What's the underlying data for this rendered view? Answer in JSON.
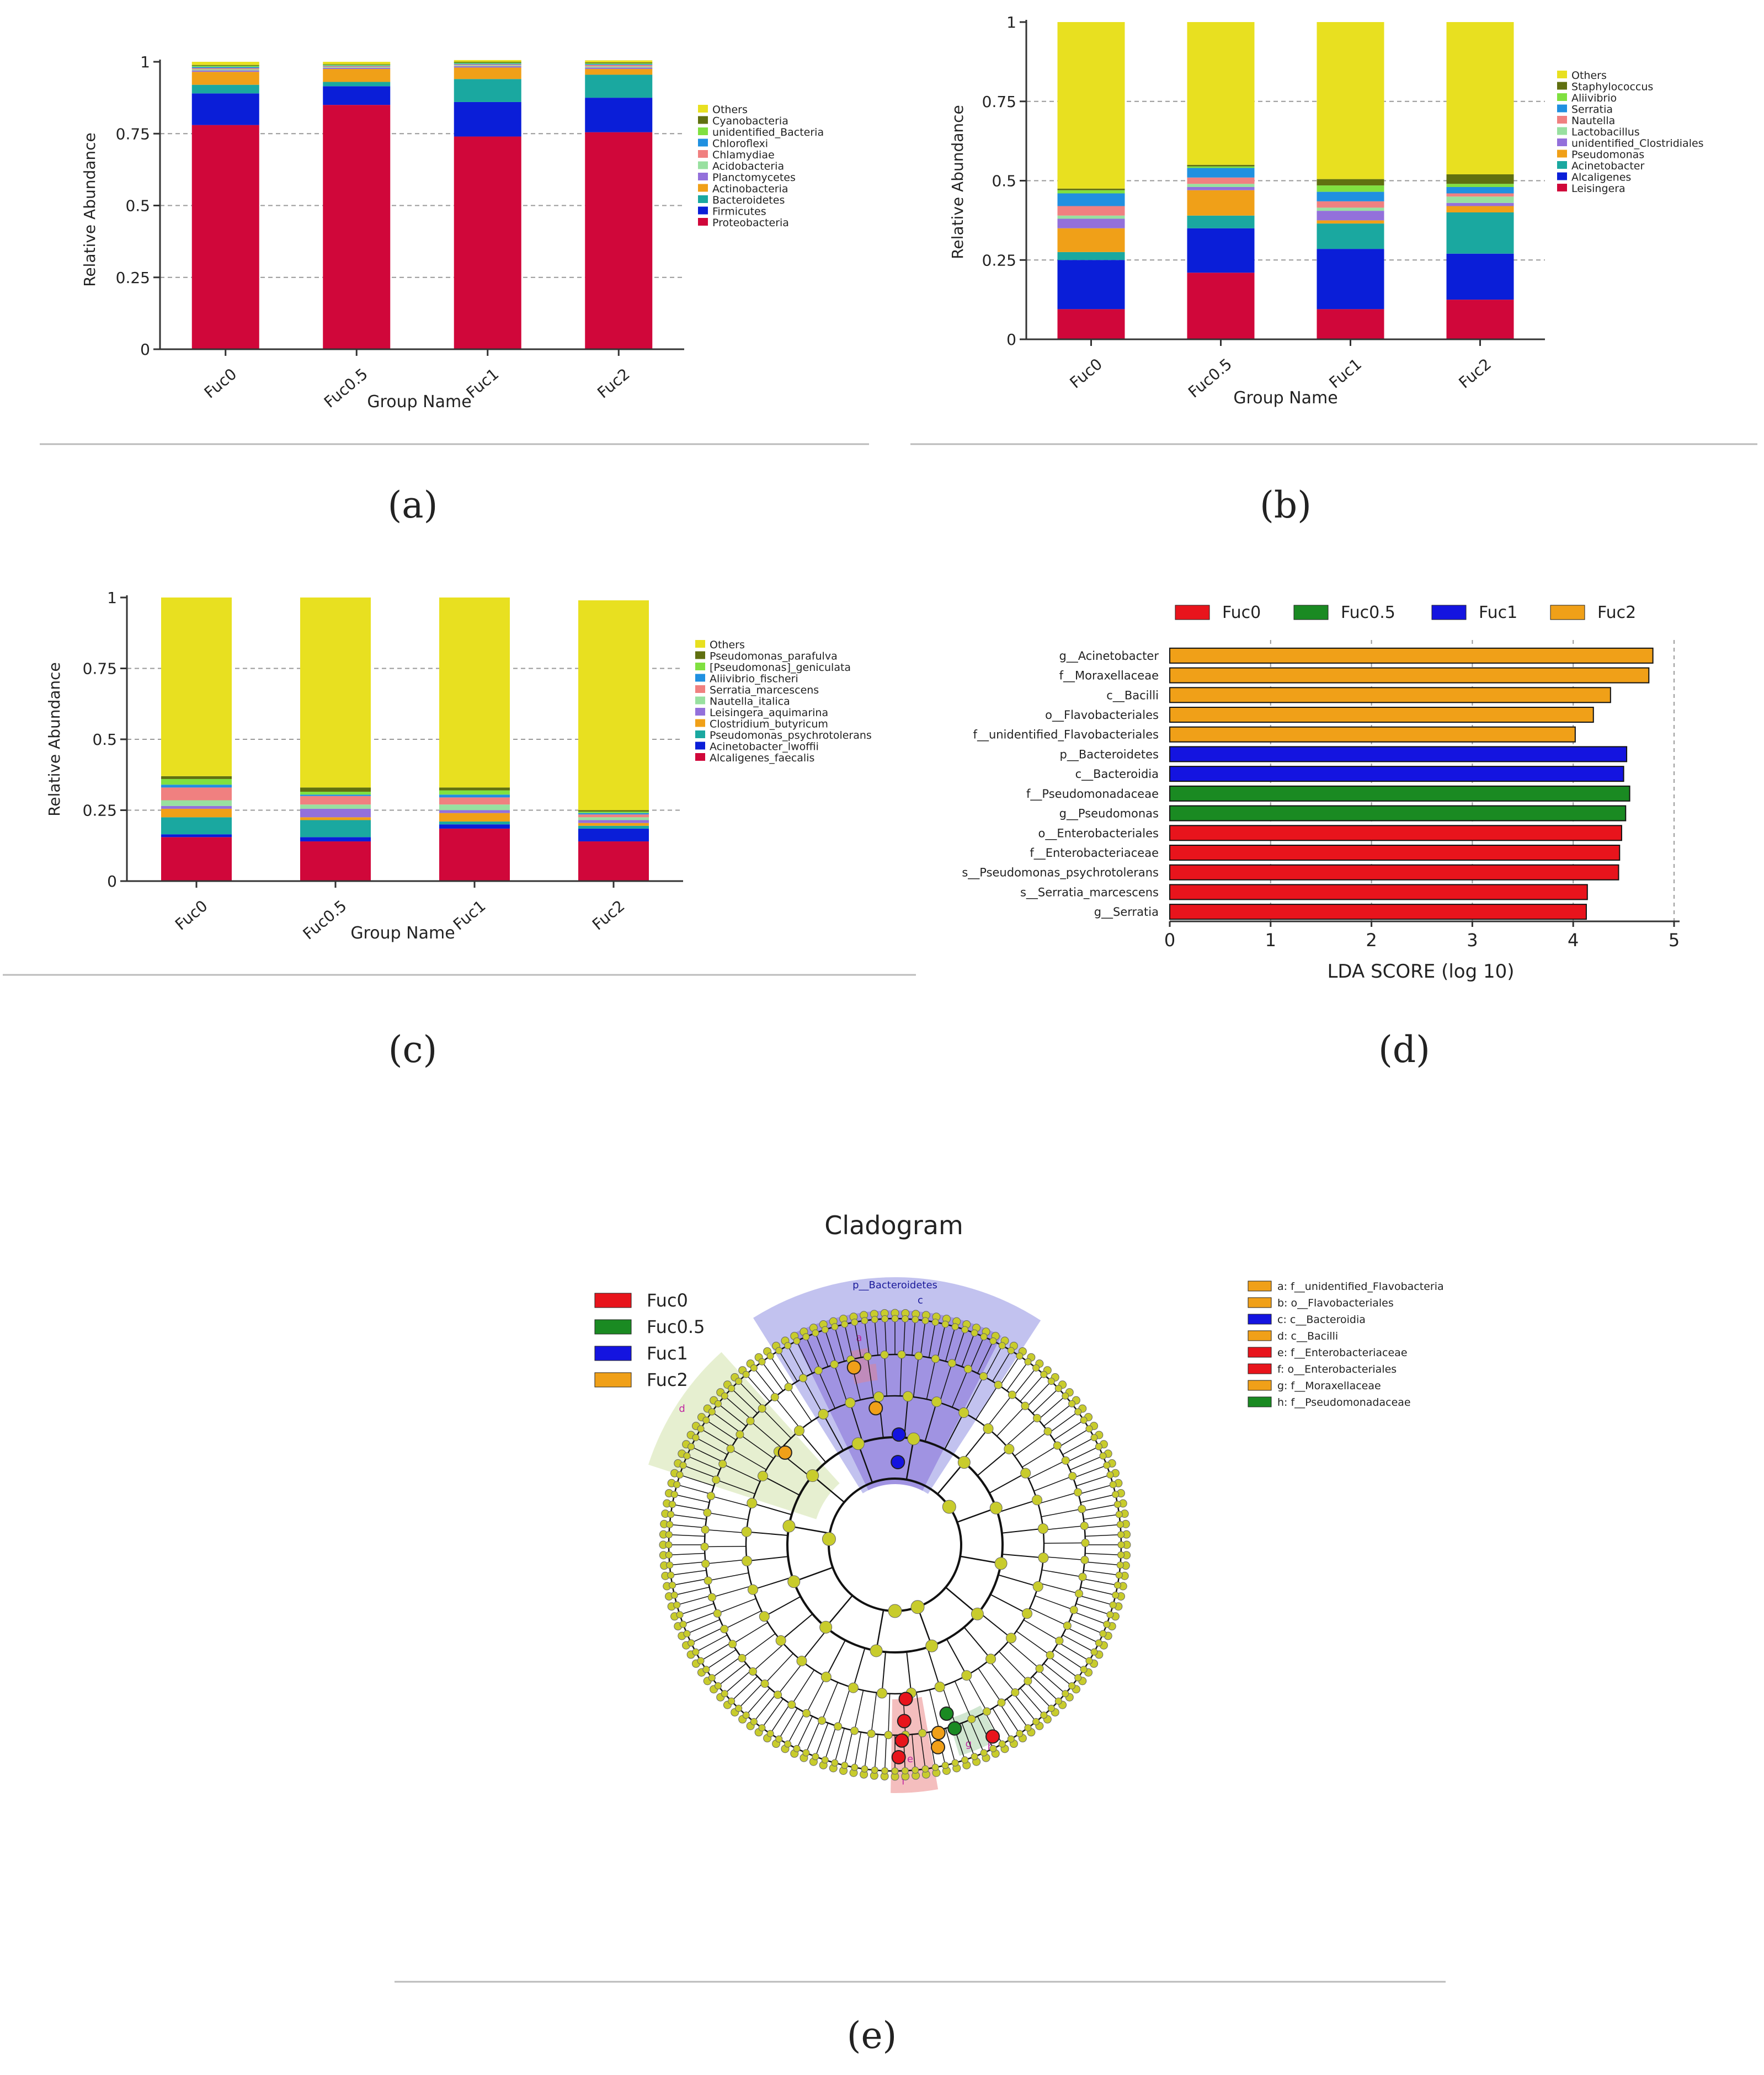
{
  "captions": {
    "a": "(a)",
    "b": "(b)",
    "c": "(c)",
    "d": "(d)",
    "e": "(e)"
  },
  "chart_data": [
    {
      "panel": "a",
      "type": "stacked-bar",
      "ylabel": "Relative Abundance",
      "xlabel": "Group Name",
      "categories": [
        "Fuc0",
        "Fuc0.5",
        "Fuc1",
        "Fuc2"
      ],
      "yticks": [
        "0",
        "0.25",
        "0.5",
        "0.75",
        "1"
      ],
      "ylim": [
        0,
        1
      ],
      "legend": [
        "Others",
        "Cyanobacteria",
        "unidentified_Bacteria",
        "Chloroflexi",
        "Chlamydiae",
        "Acidobacteria",
        "Planctomycetes",
        "Actinobacteria",
        "Bacteroidetes",
        "Firmicutes",
        "Proteobacteria"
      ],
      "series": [
        {
          "name": "Proteobacteria",
          "color": "#d0073a",
          "values": [
            0.78,
            0.85,
            0.74,
            0.755
          ]
        },
        {
          "name": "Firmicutes",
          "color": "#0a1ed8",
          "values": [
            0.11,
            0.065,
            0.12,
            0.12
          ]
        },
        {
          "name": "Bacteroidetes",
          "color": "#1aa8a0",
          "values": [
            0.03,
            0.015,
            0.08,
            0.08
          ]
        },
        {
          "name": "Actinobacteria",
          "color": "#f0a018",
          "values": [
            0.045,
            0.045,
            0.04,
            0.02
          ]
        },
        {
          "name": "Planctomycetes",
          "color": "#9370db",
          "values": [
            0.005,
            0.004,
            0.005,
            0.005
          ]
        },
        {
          "name": "Acidobacteria",
          "color": "#98e0a0",
          "values": [
            0.004,
            0.003,
            0.003,
            0.004
          ]
        },
        {
          "name": "Chlamydiae",
          "color": "#f08080",
          "values": [
            0.004,
            0.003,
            0.003,
            0.005
          ]
        },
        {
          "name": "Chloroflexi",
          "color": "#2090e0",
          "values": [
            0.004,
            0.002,
            0.003,
            0.003
          ]
        },
        {
          "name": "unidentified_Bacteria",
          "color": "#80e040",
          "values": [
            0.004,
            0.003,
            0.003,
            0.003
          ]
        },
        {
          "name": "Cyanobacteria",
          "color": "#607010",
          "values": [
            0.003,
            0.002,
            0.003,
            0.003
          ]
        },
        {
          "name": "Others",
          "color": "#e8e020",
          "values": [
            0.011,
            0.008,
            0.006,
            0.007
          ]
        }
      ]
    },
    {
      "panel": "b",
      "type": "stacked-bar",
      "ylabel": "Relative Abundance",
      "xlabel": "Group Name",
      "categories": [
        "Fuc0",
        "Fuc0.5",
        "Fuc1",
        "Fuc2"
      ],
      "yticks": [
        "0",
        "0.25",
        "0.5",
        "0.75",
        "1"
      ],
      "ylim": [
        0,
        1
      ],
      "legend": [
        "Others",
        "Staphylococcus",
        "Aliivibrio",
        "Serratia",
        "Nautella",
        "Lactobacillus",
        "unidentified_Clostridiales",
        "Pseudomonas",
        "Acinetobacter",
        "Alcaligenes",
        "Leisingera"
      ],
      "series": [
        {
          "name": "Leisingera",
          "color": "#d0073a",
          "values": [
            0.095,
            0.21,
            0.095,
            0.125
          ]
        },
        {
          "name": "Alcaligenes",
          "color": "#0a1ed8",
          "values": [
            0.155,
            0.14,
            0.19,
            0.145
          ]
        },
        {
          "name": "Acinetobacter",
          "color": "#1aa8a0",
          "values": [
            0.025,
            0.04,
            0.08,
            0.13
          ]
        },
        {
          "name": "Pseudomonas",
          "color": "#f0a018",
          "values": [
            0.075,
            0.08,
            0.01,
            0.02
          ]
        },
        {
          "name": "unidentified_Clostridiales",
          "color": "#9370db",
          "values": [
            0.03,
            0.01,
            0.03,
            0.01
          ]
        },
        {
          "name": "Lactobacillus",
          "color": "#98e0a0",
          "values": [
            0.01,
            0.01,
            0.01,
            0.02
          ]
        },
        {
          "name": "Nautella",
          "color": "#f08080",
          "values": [
            0.03,
            0.02,
            0.02,
            0.01
          ]
        },
        {
          "name": "Serratia",
          "color": "#2090e0",
          "values": [
            0.04,
            0.03,
            0.03,
            0.02
          ]
        },
        {
          "name": "Aliivibrio",
          "color": "#80e040",
          "values": [
            0.01,
            0.005,
            0.02,
            0.01
          ]
        },
        {
          "name": "Staphylococcus",
          "color": "#607010",
          "values": [
            0.005,
            0.005,
            0.02,
            0.03
          ]
        },
        {
          "name": "Others",
          "color": "#e8e020",
          "values": [
            0.525,
            0.45,
            0.495,
            0.48
          ]
        }
      ]
    },
    {
      "panel": "c",
      "type": "stacked-bar",
      "ylabel": "Relative Abundance",
      "xlabel": "Group Name",
      "categories": [
        "Fuc0",
        "Fuc0.5",
        "Fuc1",
        "Fuc2"
      ],
      "yticks": [
        "0",
        "0.25",
        "0.5",
        "0.75",
        "1"
      ],
      "ylim": [
        0,
        1
      ],
      "legend": [
        "Others",
        "Pseudomonas_parafulva",
        "[Pseudomonas]_geniculata",
        "Aliivibrio_fischeri",
        "Serratia_marcescens",
        "Nautella_italica",
        "Leisingera_aquimarina",
        "Clostridium_butyricum",
        "Pseudomonas_psychrotolerans",
        "Acinetobacter_lwoffii",
        "Alcaligenes_faecalis"
      ],
      "series": [
        {
          "name": "Alcaligenes_faecalis",
          "color": "#d0073a",
          "values": [
            0.155,
            0.14,
            0.185,
            0.14
          ]
        },
        {
          "name": "Acinetobacter_lwoffii",
          "color": "#0a1ed8",
          "values": [
            0.01,
            0.015,
            0.015,
            0.045
          ]
        },
        {
          "name": "Pseudomonas_psychrotolerans",
          "color": "#1aa8a0",
          "values": [
            0.06,
            0.06,
            0.01,
            0.01
          ]
        },
        {
          "name": "Clostridium_butyricum",
          "color": "#f0a018",
          "values": [
            0.03,
            0.01,
            0.03,
            0.01
          ]
        },
        {
          "name": "Leisingera_aquimarina",
          "color": "#9370db",
          "values": [
            0.01,
            0.03,
            0.01,
            0.01
          ]
        },
        {
          "name": "Nautella_italica",
          "color": "#98e0a0",
          "values": [
            0.02,
            0.015,
            0.02,
            0.01
          ]
        },
        {
          "name": "Serratia_marcescens",
          "color": "#f08080",
          "values": [
            0.045,
            0.03,
            0.025,
            0.01
          ]
        },
        {
          "name": "Aliivibrio_fischeri",
          "color": "#2090e0",
          "values": [
            0.01,
            0.005,
            0.01,
            0.005
          ]
        },
        {
          "name": "[Pseudomonas]_geniculata",
          "color": "#80e040",
          "values": [
            0.02,
            0.01,
            0.015,
            0.005
          ]
        },
        {
          "name": "Pseudomonas_parafulva",
          "color": "#607010",
          "values": [
            0.01,
            0.015,
            0.01,
            0.005
          ]
        },
        {
          "name": "Others",
          "color": "#e8e020",
          "values": [
            0.63,
            0.67,
            0.67,
            0.74
          ]
        }
      ]
    },
    {
      "panel": "d",
      "type": "bar",
      "orientation": "horizontal",
      "xlabel": "LDA SCORE (log 10)",
      "xlim": [
        0,
        5
      ],
      "xticks": [
        "0",
        "1",
        "2",
        "3",
        "4",
        "5"
      ],
      "legend": [
        {
          "name": "Fuc0",
          "color": "#e8141c"
        },
        {
          "name": "Fuc0.5",
          "color": "#1a8a22"
        },
        {
          "name": "Fuc1",
          "color": "#1414e0"
        },
        {
          "name": "Fuc2",
          "color": "#f0a018"
        }
      ],
      "bars": [
        {
          "label": "g__Acinetobacter",
          "value": 4.79,
          "group": "Fuc2"
        },
        {
          "label": "f__Moraxellaceae",
          "value": 4.75,
          "group": "Fuc2"
        },
        {
          "label": "c__Bacilli",
          "value": 4.37,
          "group": "Fuc2"
        },
        {
          "label": "o__Flavobacteriales",
          "value": 4.2,
          "group": "Fuc2"
        },
        {
          "label": "f__unidentified_Flavobacteriales",
          "value": 4.02,
          "group": "Fuc2"
        },
        {
          "label": "p__Bacteroidetes",
          "value": 4.53,
          "group": "Fuc1"
        },
        {
          "label": "c__Bacteroidia",
          "value": 4.5,
          "group": "Fuc1"
        },
        {
          "label": "f__Pseudomonadaceae",
          "value": 4.56,
          "group": "Fuc0.5"
        },
        {
          "label": "g__Pseudomonas",
          "value": 4.52,
          "group": "Fuc0.5"
        },
        {
          "label": "o__Enterobacteriales",
          "value": 4.48,
          "group": "Fuc0"
        },
        {
          "label": "f__Enterobacteriaceae",
          "value": 4.46,
          "group": "Fuc0"
        },
        {
          "label": "s__Pseudomonas_psychrotolerans",
          "value": 4.45,
          "group": "Fuc0"
        },
        {
          "label": "s__Serratia_marcescens",
          "value": 4.14,
          "group": "Fuc0"
        },
        {
          "label": "g__Serratia",
          "value": 4.13,
          "group": "Fuc0"
        }
      ]
    },
    {
      "panel": "e",
      "type": "cladogram",
      "title": "Cladogram",
      "group_legend": [
        {
          "name": "Fuc0",
          "color": "#e8141c"
        },
        {
          "name": "Fuc0.5",
          "color": "#1a8a22"
        },
        {
          "name": "Fuc1",
          "color": "#1414e0"
        },
        {
          "name": "Fuc2",
          "color": "#f0a018"
        }
      ],
      "clade_legend": [
        {
          "label": "a: f__unidentified_Flavobacteria",
          "color": "#f0a018"
        },
        {
          "label": "b: o__Flavobacteriales",
          "color": "#f0a018"
        },
        {
          "label": "c: c__Bacteroidia",
          "color": "#1414e0"
        },
        {
          "label": "d: c__Bacilli",
          "color": "#f0a018"
        },
        {
          "label": "e: f__Enterobacteriaceae",
          "color": "#e8141c"
        },
        {
          "label": "f: o__Enterobacteriales",
          "color": "#e8141c"
        },
        {
          "label": "g: f__Moraxellaceae",
          "color": "#f0a018"
        },
        {
          "label": "h: f__Pseudomonadaceae",
          "color": "#1a8a22"
        }
      ],
      "sector_labels": {
        "phylum": "p__Bacteroidetes",
        "c": "c",
        "b": "b",
        "a": "a",
        "d": "d",
        "e": "e",
        "f": "f",
        "g": "g",
        "h": "h"
      },
      "node_color": "#c8cc2c"
    }
  ]
}
